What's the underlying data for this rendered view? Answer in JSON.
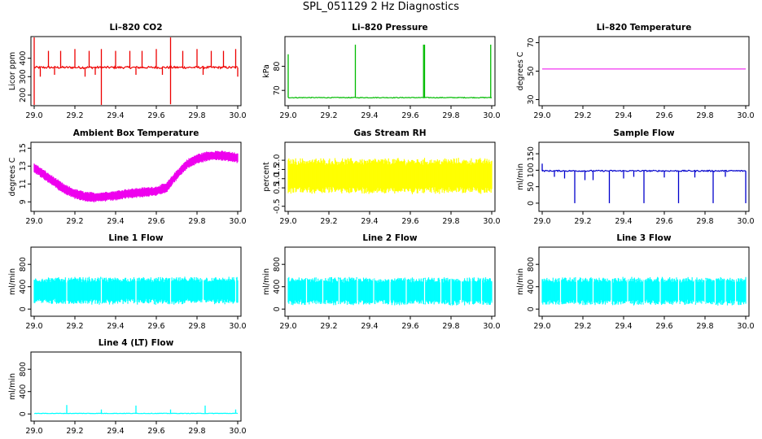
{
  "page": {
    "title": "SPL_051129  2 Hz Diagnostics"
  },
  "chart_data": [
    {
      "id": "co2",
      "type": "line",
      "title": "Li–820 CO2",
      "ylabel": "Licor ppm",
      "color": "#ee0000",
      "xlim": [
        29.0,
        30.0
      ],
      "ylim": [
        160,
        500
      ],
      "xticks": [
        "29.0",
        "29.2",
        "29.4",
        "29.6",
        "29.8",
        "30.0"
      ],
      "yticks": [
        "200",
        "300",
        "400"
      ],
      "x": [
        29.0,
        30.0
      ],
      "base": 350,
      "noise": 6,
      "spikes": [
        [
          29.0,
          520
        ],
        [
          29.0,
          130
        ],
        [
          29.03,
          300
        ],
        [
          29.07,
          440
        ],
        [
          29.1,
          310
        ],
        [
          29.13,
          440
        ],
        [
          29.2,
          450
        ],
        [
          29.25,
          300
        ],
        [
          29.27,
          440
        ],
        [
          29.3,
          310
        ],
        [
          29.33,
          130
        ],
        [
          29.33,
          450
        ],
        [
          29.4,
          440
        ],
        [
          29.47,
          440
        ],
        [
          29.5,
          310
        ],
        [
          29.53,
          440
        ],
        [
          29.6,
          450
        ],
        [
          29.63,
          310
        ],
        [
          29.67,
          550
        ],
        [
          29.67,
          150
        ],
        [
          29.73,
          440
        ],
        [
          29.8,
          450
        ],
        [
          29.83,
          310
        ],
        [
          29.87,
          440
        ],
        [
          29.93,
          440
        ],
        [
          29.99,
          450
        ],
        [
          30.0,
          300
        ]
      ]
    },
    {
      "id": "pressure",
      "type": "line",
      "title": "Li–820 Pressure",
      "ylabel": "kPa",
      "color": "#00bb00",
      "xlim": [
        29.0,
        30.0
      ],
      "ylim": [
        65,
        91
      ],
      "xticks": [
        "29.0",
        "29.2",
        "29.4",
        "29.6",
        "29.8",
        "30.0"
      ],
      "yticks": [
        "70",
        "80"
      ],
      "x": [
        29.0,
        30.0
      ],
      "base": 67,
      "noise": 0.15,
      "spikes": [
        [
          29.0,
          85
        ],
        [
          29.33,
          89
        ],
        [
          29.665,
          89
        ],
        [
          29.67,
          89
        ],
        [
          29.995,
          89
        ]
      ]
    },
    {
      "id": "temp",
      "type": "line",
      "title": "Li–820 Temperature",
      "ylabel": "degrees C",
      "color": "#ee00ee",
      "xlim": [
        29.0,
        30.0
      ],
      "ylim": [
        28,
        72
      ],
      "xticks": [
        "29.0",
        "29.2",
        "29.4",
        "29.6",
        "29.8",
        "30.0"
      ],
      "yticks": [
        "30",
        "50",
        "70"
      ],
      "x": [
        29.0,
        30.0
      ],
      "y": [
        51.5,
        51.5
      ]
    },
    {
      "id": "ambient",
      "type": "band",
      "title": "Ambient Box Temperature",
      "ylabel": "degrees C",
      "color": "#ee00ee",
      "xlim": [
        29.0,
        30.0
      ],
      "ylim": [
        8.3,
        15.3
      ],
      "xticks": [
        "29.0",
        "29.2",
        "29.4",
        "29.6",
        "29.8",
        "30.0"
      ],
      "yticks": [
        "9",
        "11",
        "13",
        "15"
      ],
      "x": [
        29.0,
        29.05,
        29.1,
        29.15,
        29.2,
        29.25,
        29.3,
        29.35,
        29.4,
        29.45,
        29.5,
        29.55,
        29.6,
        29.65,
        29.7,
        29.75,
        29.8,
        29.85,
        29.9,
        29.95,
        30.0
      ],
      "y": [
        12.8,
        12.0,
        11.2,
        10.4,
        9.9,
        9.6,
        9.5,
        9.6,
        9.7,
        9.9,
        10.0,
        10.1,
        10.2,
        10.6,
        12.0,
        13.2,
        13.8,
        14.1,
        14.2,
        14.1,
        13.9
      ],
      "spread": 1.0
    },
    {
      "id": "rh",
      "type": "band",
      "title": "Gas Stream RH",
      "ylabel": "percent",
      "color": "#ffff00",
      "xlim": [
        29.0,
        30.0
      ],
      "ylim": [
        -0.6,
        2.8
      ],
      "xticks": [
        "29.0",
        "29.2",
        "29.4",
        "29.6",
        "29.8",
        "30.0"
      ],
      "yticks": [
        "-0.5",
        "0.5",
        "1.0",
        "1.5",
        "2.0"
      ],
      "x": [
        29.0,
        30.0
      ],
      "y": [
        1.15,
        1.15
      ],
      "spread": 1.7
    },
    {
      "id": "sample",
      "type": "line",
      "title": "Sample Flow",
      "ylabel": "ml/min",
      "color": "#0000cc",
      "xlim": [
        29.0,
        30.0
      ],
      "ylim": [
        -15,
        175
      ],
      "xticks": [
        "29.0",
        "29.2",
        "29.4",
        "29.6",
        "29.8",
        "30.0"
      ],
      "yticks": [
        "0",
        "50",
        "100",
        "150"
      ],
      "x": [
        29.0,
        30.0
      ],
      "base": 98,
      "noise": 2,
      "spikes": [
        [
          29.0,
          120
        ],
        [
          29.06,
          80
        ],
        [
          29.11,
          75
        ],
        [
          29.16,
          0
        ],
        [
          29.21,
          70
        ],
        [
          29.25,
          70
        ],
        [
          29.33,
          0
        ],
        [
          29.4,
          75
        ],
        [
          29.45,
          80
        ],
        [
          29.5,
          0
        ],
        [
          29.6,
          78
        ],
        [
          29.67,
          0
        ],
        [
          29.75,
          78
        ],
        [
          29.84,
          0
        ],
        [
          29.9,
          80
        ],
        [
          30.0,
          0
        ]
      ]
    },
    {
      "id": "line1",
      "type": "band",
      "title": "Line 1 Flow",
      "ylabel": "ml/min",
      "color": "#00ffff",
      "xlim": [
        29.0,
        30.0
      ],
      "ylim": [
        -70,
        1050
      ],
      "xticks": [
        "29.0",
        "29.2",
        "29.4",
        "29.6",
        "29.8",
        "30.0"
      ],
      "yticks": [
        "0",
        "400",
        "800"
      ],
      "x": [
        29.0,
        30.0
      ],
      "y": [
        330,
        330
      ],
      "spread": 430,
      "gaps": [
        29.16,
        29.33,
        29.5,
        29.67,
        29.83,
        29.99
      ]
    },
    {
      "id": "line2",
      "type": "band",
      "title": "Line 2 Flow",
      "ylabel": "ml/min",
      "color": "#00ffff",
      "xlim": [
        29.0,
        30.0
      ],
      "ylim": [
        -70,
        1050
      ],
      "xticks": [
        "29.0",
        "29.2",
        "29.4",
        "29.6",
        "29.8",
        "30.0"
      ],
      "yticks": [
        "0",
        "400",
        "800"
      ],
      "x": [
        29.0,
        30.0
      ],
      "y": [
        320,
        320
      ],
      "spread": 440,
      "gaps": [
        29.09,
        29.17,
        29.25,
        29.34,
        29.42,
        29.5,
        29.58,
        29.67,
        29.75,
        29.8,
        29.85,
        29.9,
        29.95
      ]
    },
    {
      "id": "line3",
      "type": "band",
      "title": "Line 3 Flow",
      "ylabel": "ml/min",
      "color": "#00ffff",
      "xlim": [
        29.0,
        30.0
      ],
      "ylim": [
        -70,
        1050
      ],
      "xticks": [
        "29.0",
        "29.2",
        "29.4",
        "29.6",
        "29.8",
        "30.0"
      ],
      "yticks": [
        "0",
        "400",
        "800"
      ],
      "x": [
        29.0,
        30.0
      ],
      "y": [
        320,
        320
      ],
      "spread": 440,
      "gaps": [
        29.09,
        29.17,
        29.25,
        29.34,
        29.42,
        29.5,
        29.58,
        29.67,
        29.75,
        29.8,
        29.85,
        29.9,
        29.95
      ]
    },
    {
      "id": "line4",
      "type": "line",
      "title": "Line 4 (LT) Flow",
      "ylabel": "ml/min",
      "color": "#00ffff",
      "xlim": [
        29.0,
        30.0
      ],
      "ylim": [
        -70,
        1050
      ],
      "xticks": [
        "29.0",
        "29.2",
        "29.4",
        "29.6",
        "29.8",
        "30.0"
      ],
      "yticks": [
        "0",
        "400",
        "800"
      ],
      "x": [
        29.0,
        30.0
      ],
      "base": 10,
      "noise": 4,
      "spikes": [
        [
          29.16,
          160
        ],
        [
          29.33,
          80
        ],
        [
          29.5,
          150
        ],
        [
          29.67,
          80
        ],
        [
          29.84,
          150
        ],
        [
          29.99,
          80
        ]
      ]
    }
  ]
}
